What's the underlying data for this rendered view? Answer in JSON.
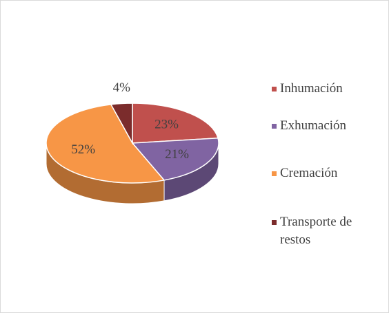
{
  "chart_data": {
    "type": "pie",
    "categories": [
      "Inhumación",
      "Exhumación",
      "Cremación",
      "Transporte de restos"
    ],
    "values": [
      23,
      21,
      52,
      4
    ],
    "value_labels": [
      "23%",
      "21%",
      "52%",
      "4%"
    ],
    "colors": [
      "#c0504d",
      "#8064a2",
      "#f79646",
      "#7b2c2c"
    ],
    "legend": "right"
  }
}
